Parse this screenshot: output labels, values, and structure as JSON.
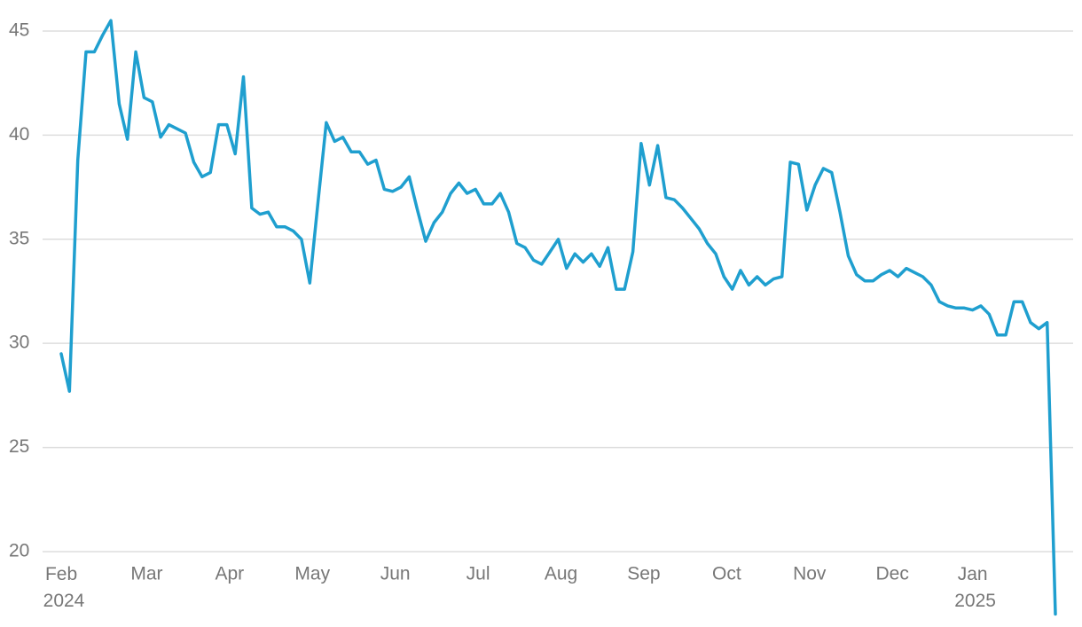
{
  "chart_data": {
    "type": "line",
    "categories": [
      "Feb 2024",
      null,
      null,
      null,
      null,
      null,
      null,
      null,
      null,
      null,
      "Mar",
      null,
      null,
      null,
      null,
      null,
      null,
      null,
      null,
      null,
      "Apr",
      null,
      null,
      null,
      null,
      null,
      null,
      null,
      null,
      null,
      "May",
      null,
      null,
      null,
      null,
      null,
      null,
      null,
      null,
      null,
      "Jun",
      null,
      null,
      null,
      null,
      null,
      null,
      null,
      null,
      null,
      "Jul",
      null,
      null,
      null,
      null,
      null,
      null,
      null,
      null,
      null,
      "Aug",
      null,
      null,
      null,
      null,
      null,
      null,
      null,
      null,
      null,
      "Sep",
      null,
      null,
      null,
      null,
      null,
      null,
      null,
      null,
      null,
      "Oct",
      null,
      null,
      null,
      null,
      null,
      null,
      null,
      null,
      null,
      "Nov",
      null,
      null,
      null,
      null,
      null,
      null,
      null,
      null,
      null,
      "Dec",
      null,
      null,
      null,
      null,
      null,
      null,
      null,
      null,
      null,
      "Jan 2025",
      null,
      null,
      null,
      null,
      null,
      null,
      null,
      null,
      null,
      null
    ],
    "values": [
      29.5,
      27.7,
      38.8,
      44,
      44,
      44.8,
      45.5,
      41.5,
      39.8,
      44,
      41.8,
      41.6,
      39.9,
      40.5,
      40.3,
      40.1,
      38.7,
      38,
      38.2,
      40.5,
      40.5,
      39.1,
      42.8,
      36.5,
      36.2,
      36.3,
      35.6,
      35.6,
      35.4,
      35,
      32.9,
      36.8,
      40.6,
      39.7,
      39.9,
      39.2,
      39.2,
      38.6,
      38.8,
      37.4,
      37.3,
      37.5,
      38,
      36.4,
      34.9,
      35.8,
      36.3,
      37.2,
      37.7,
      37.2,
      37.4,
      36.7,
      36.7,
      37.2,
      36.3,
      34.8,
      34.6,
      34,
      33.8,
      34.4,
      35,
      33.6,
      34.3,
      33.9,
      34.3,
      33.7,
      34.6,
      32.6,
      32.6,
      34.4,
      39.6,
      37.6,
      39.5,
      37,
      36.9,
      36.5,
      36,
      35.5,
      34.8,
      34.3,
      33.2,
      32.6,
      33.5,
      32.8,
      33.2,
      32.8,
      33.1,
      33.2,
      38.7,
      38.6,
      36.4,
      37.6,
      38.4,
      38.2,
      36.3,
      34.2,
      33.3,
      33,
      33,
      33.3,
      33.5,
      33.2,
      33.6,
      33.4,
      33.2,
      32.8,
      32,
      31.8,
      31.7,
      31.7,
      31.6,
      31.8,
      31.4,
      30.4,
      30.4,
      32,
      32,
      31,
      30.7,
      31,
      17
    ],
    "color": "#1f9fcf",
    "ylim": [
      17,
      46
    ],
    "yticks": [
      20,
      25,
      30,
      35,
      40,
      45
    ],
    "grid": true
  }
}
